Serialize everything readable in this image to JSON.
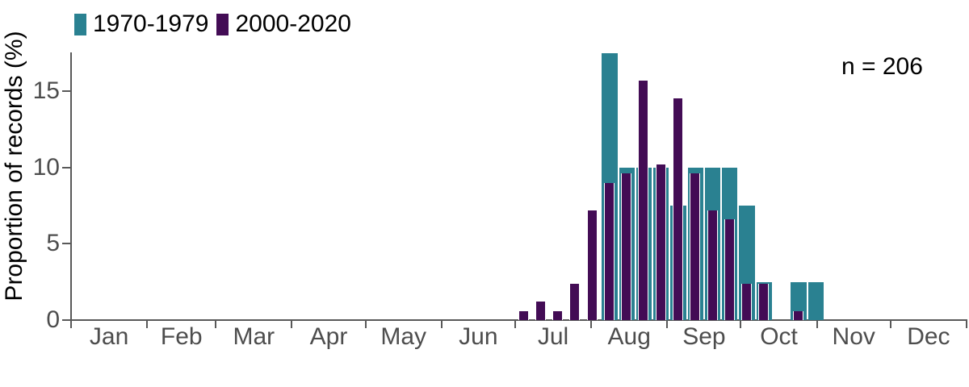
{
  "colors": {
    "series_teal": "#2A8191",
    "series_purple": "#430C55",
    "axis_line": "#595959",
    "axis_tick_label": "#4D4D4D",
    "text": "#000000",
    "background": "#FFFFFF"
  },
  "legend": {
    "items": [
      {
        "label": "1970-1979",
        "color": "#2A8191"
      },
      {
        "label": "2000-2020",
        "color": "#430C55"
      }
    ]
  },
  "annotation": {
    "text": "n = 206"
  },
  "chart_data": {
    "type": "bar",
    "subtype": "overlaid-weekly-histogram",
    "title": "",
    "xlabel": "",
    "ylabel": "Proportion of records (%)",
    "ylim": [
      0,
      17.6
    ],
    "yticks": [
      0,
      5,
      10,
      15
    ],
    "grid": false,
    "legend_position": "top-left",
    "annotation": "n = 206",
    "x_axis": {
      "kind": "month-of-year",
      "month_labels": [
        "Jan",
        "Feb",
        "Mar",
        "Apr",
        "May",
        "Jun",
        "Jul",
        "Aug",
        "Sep",
        "Oct",
        "Nov",
        "Dec"
      ],
      "month_days": [
        31,
        28,
        31,
        30,
        31,
        30,
        31,
        31,
        30,
        31,
        30,
        31
      ],
      "ticks_at_month_boundaries": true
    },
    "bins": {
      "first_bin_start_day_of_year": 181,
      "bin_width_days": 7,
      "n_bins": 18
    },
    "series": [
      {
        "name": "1970-1979",
        "color": "#2A8191",
        "role": "background-wide-bars",
        "values": [
          0,
          0,
          0,
          0,
          0,
          17.5,
          10,
          10,
          10,
          7.5,
          10,
          10,
          10,
          7.5,
          2.5,
          0,
          2.5,
          2.5
        ]
      },
      {
        "name": "2000-2020",
        "color": "#430C55",
        "role": "foreground-narrow-bars",
        "values": [
          0.6,
          1.2,
          0.6,
          2.4,
          7.2,
          9.0,
          9.6,
          15.7,
          10.2,
          14.5,
          9.6,
          7.2,
          6.6,
          2.4,
          2.4,
          0,
          0.6,
          0
        ]
      }
    ],
    "n_total": 206
  }
}
